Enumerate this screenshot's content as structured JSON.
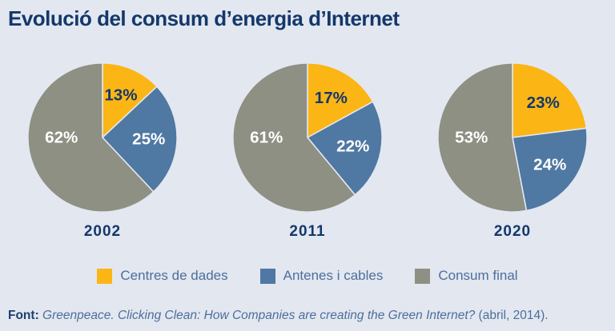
{
  "title": "Evolució del consum d’energia d’Internet",
  "colors": {
    "background": "#e3e7f0",
    "title_text": "#14386b",
    "centres_de_dades": "#fbb615",
    "antenes_i_cables": "#4f78a3",
    "consum_final": "#8e9083",
    "label_on_yellow": "#14386b",
    "label_on_dark": "#ffffff",
    "legend_text": "#4c6f9b",
    "slice_gap": "#e3e7f0"
  },
  "chart_data": [
    {
      "type": "pie",
      "title": "2002",
      "categories": [
        "Centres de dades",
        "Antenes i cables",
        "Consum final"
      ],
      "values": [
        13,
        25,
        62
      ],
      "labels": [
        "13%",
        "25%",
        "62%"
      ],
      "unit": "%",
      "start_angle_deg": 0,
      "direction": "clockwise"
    },
    {
      "type": "pie",
      "title": "2011",
      "categories": [
        "Centres de dades",
        "Antenes i cables",
        "Consum final"
      ],
      "values": [
        17,
        22,
        61
      ],
      "labels": [
        "17%",
        "22%",
        "61%"
      ],
      "unit": "%",
      "start_angle_deg": 0,
      "direction": "clockwise"
    },
    {
      "type": "pie",
      "title": "2020",
      "categories": [
        "Centres de dades",
        "Antenes i cables",
        "Consum final"
      ],
      "values": [
        23,
        24,
        53
      ],
      "labels": [
        "23%",
        "24%",
        "53%"
      ],
      "unit": "%",
      "start_angle_deg": 0,
      "direction": "clockwise"
    }
  ],
  "legend": {
    "items": [
      {
        "label": "Centres de dades",
        "color": "#fbb615"
      },
      {
        "label": "Antenes i cables",
        "color": "#4f78a3"
      },
      {
        "label": "Consum final",
        "color": "#8e9083"
      }
    ]
  },
  "footer": {
    "label": "Font:",
    "source_italic": " Greenpeace. Clicking Clean: How Companies are creating the Green Internet?",
    "source_suffix": " (abril, 2014)."
  }
}
